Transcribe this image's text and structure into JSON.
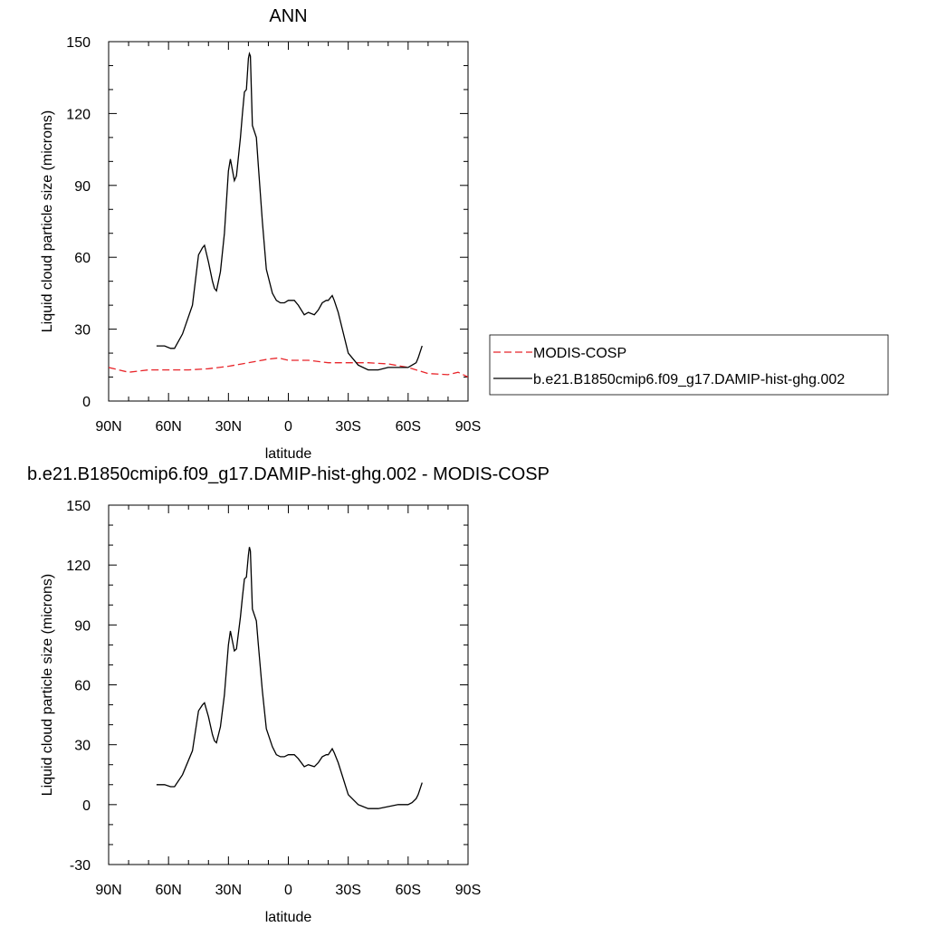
{
  "chart_data": [
    {
      "type": "line",
      "title": "ANN",
      "xlabel": "latitude",
      "ylabel": "Liquid cloud particle size (microns)",
      "xlim": [
        90,
        -90
      ],
      "ylim": [
        0,
        150
      ],
      "xticks": [
        {
          "value": 90,
          "label": "90N"
        },
        {
          "value": 60,
          "label": "60N"
        },
        {
          "value": 30,
          "label": "30N"
        },
        {
          "value": 0,
          "label": "0"
        },
        {
          "value": -30,
          "label": "30S"
        },
        {
          "value": -60,
          "label": "60S"
        },
        {
          "value": -90,
          "label": "90S"
        }
      ],
      "yticks": [
        0,
        30,
        60,
        90,
        120,
        150
      ],
      "legend_position": "right",
      "series": [
        {
          "name": "MODIS-COSP",
          "color": "#e8252a",
          "style": "dashed",
          "x": [
            90,
            80,
            70,
            60,
            50,
            40,
            30,
            20,
            10,
            5,
            0,
            -10,
            -20,
            -30,
            -40,
            -50,
            -60,
            -70,
            -80,
            -85,
            -90
          ],
          "y": [
            14,
            12,
            13,
            13,
            13,
            13.5,
            14.5,
            16,
            17.5,
            18,
            17,
            17,
            16,
            16,
            16,
            15.5,
            14,
            11.5,
            11,
            12,
            10
          ]
        },
        {
          "name": "b.e21.B1850cmip6.f09_g17.DAMIP-hist-ghg.002",
          "color": "#000000",
          "style": "solid",
          "x": [
            66,
            62,
            59,
            57,
            53,
            48,
            45,
            43,
            42,
            40,
            38,
            37,
            36,
            34,
            32,
            30,
            29,
            27,
            26,
            24,
            23,
            22,
            21,
            20,
            19.5,
            19,
            18,
            16,
            15,
            13,
            11,
            8,
            6,
            4,
            2,
            0,
            -3,
            -5,
            -8,
            -10,
            -13,
            -15,
            -17,
            -19,
            -20,
            -22,
            -23,
            -25,
            -30,
            -35,
            -40,
            -45,
            -50,
            -55,
            -60,
            -62,
            -64,
            -65,
            -67
          ],
          "y": [
            23,
            23,
            22,
            22,
            28,
            40,
            61,
            64,
            65,
            58,
            50,
            47,
            46,
            54,
            70,
            96,
            101,
            92,
            94,
            110,
            120,
            129,
            130,
            143,
            145,
            144,
            115,
            110,
            98,
            75,
            55,
            45,
            42,
            41,
            41,
            42,
            42,
            40,
            36,
            37,
            36,
            38,
            41,
            42,
            42,
            44,
            42,
            37,
            20,
            15,
            13,
            13,
            14,
            14,
            14,
            15,
            16,
            18,
            23
          ]
        }
      ]
    },
    {
      "type": "line",
      "title": "b.e21.B1850cmip6.f09_g17.DAMIP-hist-ghg.002 - MODIS-COSP",
      "xlabel": "latitude",
      "ylabel": "Liquid cloud particle size (microns)",
      "xlim": [
        90,
        -90
      ],
      "ylim": [
        -30,
        150
      ],
      "xticks": [
        {
          "value": 90,
          "label": "90N"
        },
        {
          "value": 60,
          "label": "60N"
        },
        {
          "value": 30,
          "label": "30N"
        },
        {
          "value": 0,
          "label": "0"
        },
        {
          "value": -30,
          "label": "30S"
        },
        {
          "value": -60,
          "label": "60S"
        },
        {
          "value": -90,
          "label": "90S"
        }
      ],
      "yticks": [
        -30,
        0,
        30,
        60,
        90,
        120,
        150
      ],
      "series": [
        {
          "color": "#000000",
          "style": "solid",
          "x": [
            66,
            62,
            59,
            57,
            53,
            48,
            45,
            43,
            42,
            40,
            38,
            37,
            36,
            34,
            32,
            30,
            29,
            27,
            26,
            24,
            23,
            22,
            21,
            20,
            19.5,
            19,
            18,
            16,
            15,
            13,
            11,
            8,
            6,
            4,
            2,
            0,
            -3,
            -5,
            -8,
            -10,
            -13,
            -15,
            -17,
            -19,
            -20,
            -22,
            -23,
            -25,
            -30,
            -35,
            -40,
            -45,
            -50,
            -55,
            -60,
            -62,
            -64,
            -65,
            -67
          ],
          "y": [
            10,
            10,
            9,
            9,
            15,
            27,
            47,
            50,
            51,
            44,
            35,
            32,
            31,
            39,
            55,
            80,
            87,
            77,
            78,
            94,
            104,
            113,
            114,
            125,
            129,
            127,
            98,
            92,
            80,
            57,
            38,
            29,
            25,
            24,
            24,
            25,
            25,
            23,
            19,
            20,
            19,
            21,
            24,
            25,
            25,
            28,
            26,
            21,
            5,
            0,
            -2,
            -2,
            -1,
            0,
            0,
            1,
            3,
            5,
            11
          ]
        }
      ]
    }
  ]
}
